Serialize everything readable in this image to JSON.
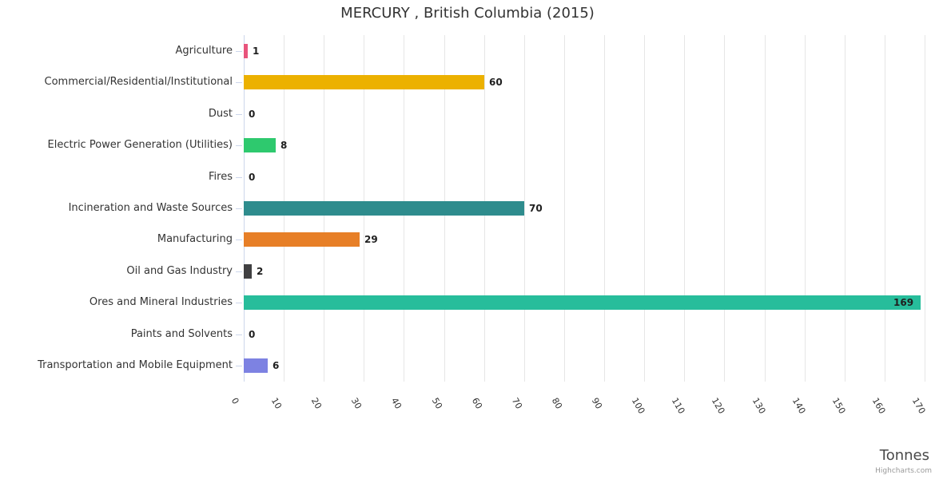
{
  "title": "MERCURY , British Columbia (2015)",
  "axis_title": "Tonnes",
  "credits": {
    "label": "Highcharts.com"
  },
  "chart_data": {
    "type": "bar",
    "orientation": "horizontal",
    "title": "MERCURY , British Columbia (2015)",
    "categories": [
      "Agriculture",
      "Commercial/Residential/Institutional",
      "Dust",
      "Electric Power Generation (Utilities)",
      "Fires",
      "Incineration and Waste Sources",
      "Manufacturing",
      "Oil and Gas Industry",
      "Ores and Mineral Industries",
      "Paints and Solvents",
      "Transportation and Mobile Equipment"
    ],
    "values": [
      1,
      60,
      0,
      8,
      0,
      70,
      29,
      2,
      169,
      0,
      6
    ],
    "data_labels": [
      "1",
      "60",
      "0",
      "8",
      "0",
      "70",
      "29",
      "2",
      "169",
      "0",
      "6"
    ],
    "bar_colors": [
      "#e8547c",
      "#ecb100",
      null,
      "#2ec96e",
      null,
      "#2e8c8d",
      "#e77f27",
      "#404042",
      "#27bd9b",
      null,
      "#7d82e2"
    ],
    "xlabel": "Tonnes",
    "ylabel": "",
    "legend": "none",
    "grid": true,
    "axis": {
      "min": 0,
      "max": 170,
      "tick_interval": 10
    },
    "tick_labels": [
      "0",
      "10",
      "20",
      "30",
      "40",
      "50",
      "60",
      "70",
      "80",
      "90",
      "100",
      "110",
      "120",
      "130",
      "140",
      "150",
      "160",
      "170"
    ]
  },
  "style_colors": {
    "gridline": "#e6e6e6",
    "axis_line": "#ccd6eb",
    "text": "#333333",
    "value_label": "#1f1f1f",
    "axis_title": "#4a4a4a",
    "credits": "#999999"
  }
}
